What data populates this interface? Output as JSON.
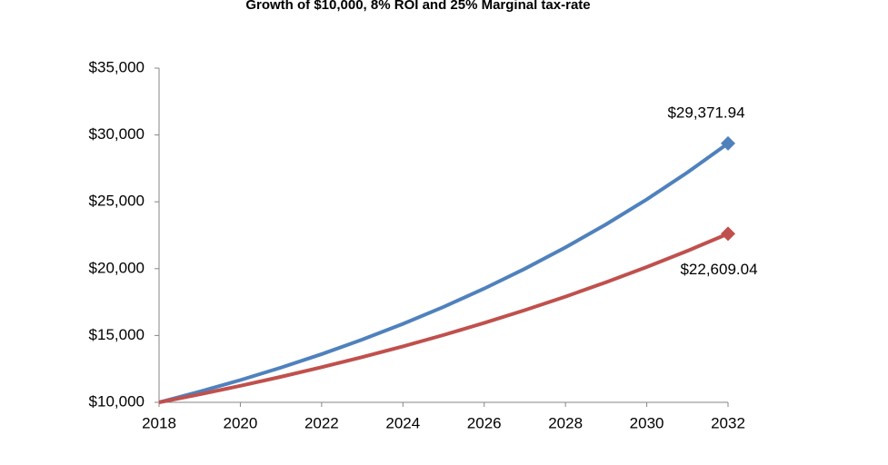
{
  "chart_data": {
    "type": "line",
    "title": "Growth of $10,000, 8% ROI and 25% Marginal tax-rate",
    "x": [
      2018,
      2019,
      2020,
      2021,
      2022,
      2023,
      2024,
      2025,
      2026,
      2027,
      2028,
      2029,
      2030,
      2031,
      2032
    ],
    "series": [
      {
        "color": "#4f81bd",
        "values": [
          10000,
          10800,
          11664,
          12597.12,
          13604.89,
          14693.28,
          15868.74,
          17138.24,
          18509.3,
          19990.05,
          21589.25,
          23316.39,
          25181.7,
          27196.24,
          29371.94
        ],
        "value_labels": [
          null,
          null,
          null,
          null,
          null,
          null,
          null,
          null,
          null,
          null,
          null,
          null,
          null,
          null,
          "$29,371.94"
        ]
      },
      {
        "color": "#c0504d",
        "values": [
          10000,
          10600,
          11236,
          11910.16,
          12624.77,
          13382.26,
          14185.19,
          15036.3,
          15938.48,
          16894.79,
          17908.48,
          18982.99,
          20121.96,
          21329.28,
          22609.04
        ],
        "value_labels": [
          null,
          null,
          null,
          null,
          null,
          null,
          null,
          null,
          null,
          null,
          null,
          null,
          null,
          null,
          "$22,609.04"
        ]
      }
    ],
    "xlim": [
      2018,
      2032
    ],
    "xticks": [
      2018,
      2020,
      2022,
      2024,
      2026,
      2028,
      2030,
      2032
    ],
    "ylim": [
      10000,
      35000
    ],
    "yticks": [
      {
        "value": 10000,
        "label": "$10,000"
      },
      {
        "value": 15000,
        "label": "$15,000"
      },
      {
        "value": 20000,
        "label": "$20,000"
      },
      {
        "value": 25000,
        "label": "$25,000"
      },
      {
        "value": 30000,
        "label": "$30,000"
      },
      {
        "value": 35000,
        "label": "$35,000"
      }
    ],
    "grid": false
  }
}
